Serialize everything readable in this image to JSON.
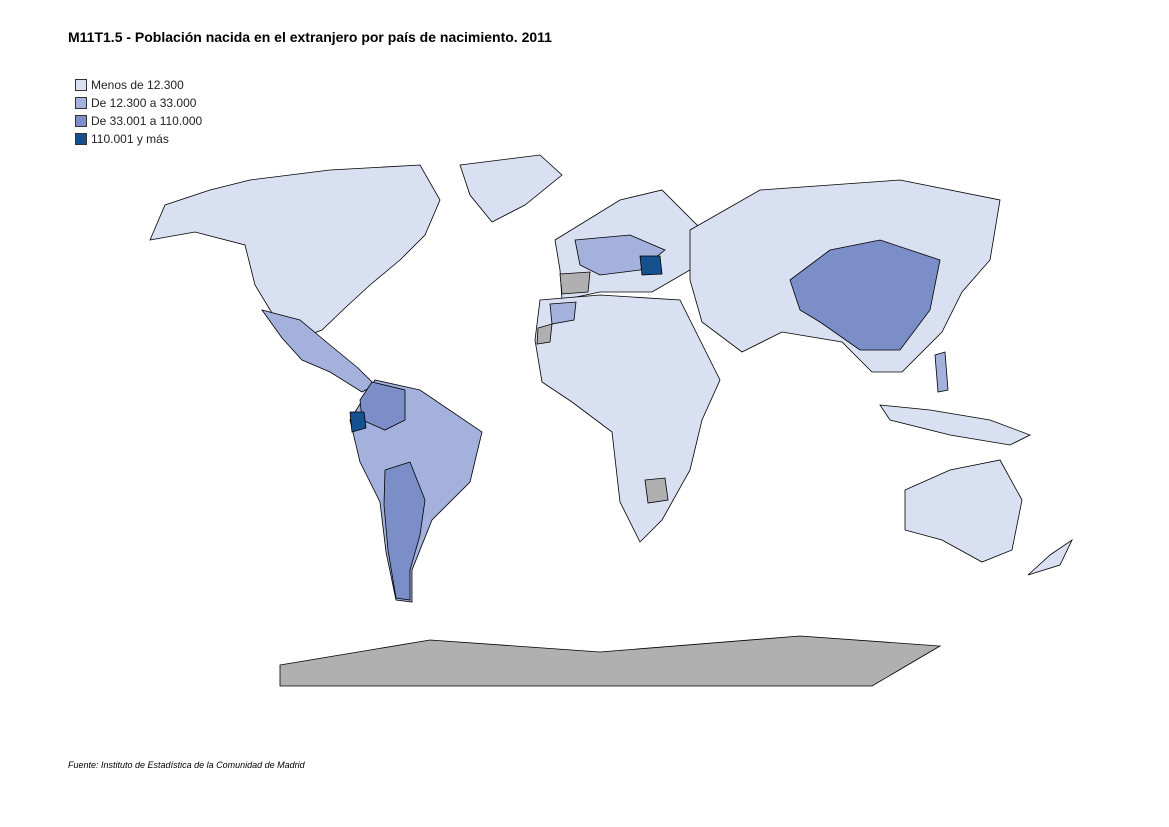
{
  "title": "M11T1.5 - Población nacida en el extranjero por país de nacimiento. 2011",
  "legend": [
    {
      "label": "Menos de 12.300",
      "color": "#d9e0f2"
    },
    {
      "label": "De 12.300 a 33.000",
      "color": "#a3b1dc"
    },
    {
      "label": "De 33.001 a 110.000",
      "color": "#7b8ec8"
    },
    {
      "label": "110.001 y más",
      "color": "#17508f"
    }
  ],
  "source": "Fuente: Instituto de Estadística de la Comunidad de Madrid"
}
